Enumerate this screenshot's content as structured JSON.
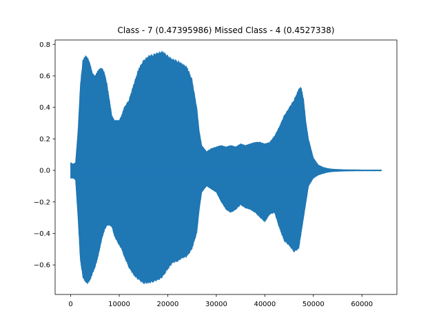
{
  "chart_data": {
    "type": "line",
    "title": "Class - 7 (0.47395986) Missed Class - 4 (0.4527338)",
    "xlabel": "",
    "ylabel": "",
    "xlim": [
      -3200,
      67200
    ],
    "ylim": [
      -0.7875,
      0.8275
    ],
    "xticks": [
      0,
      10000,
      20000,
      30000,
      40000,
      50000,
      60000
    ],
    "xtick_labels": [
      "0",
      "10000",
      "20000",
      "30000",
      "40000",
      "50000",
      "60000"
    ],
    "yticks": [
      -0.6,
      -0.4,
      -0.2,
      0.0,
      0.2,
      0.4,
      0.6,
      0.8
    ],
    "ytick_labels": [
      "−0.6",
      "−0.4",
      "−0.2",
      "0.0",
      "0.2",
      "0.4",
      "0.6",
      "0.8"
    ],
    "grid": false,
    "series_color": "#1f77b4",
    "series": [
      {
        "description": "waveform amplitude envelope (max / min) over sample index 0–64000",
        "x": [
          0,
          500,
          1000,
          1500,
          2000,
          2500,
          3000,
          3500,
          4000,
          4500,
          5000,
          5500,
          6000,
          6500,
          7000,
          7500,
          8000,
          8500,
          9000,
          10000,
          10500,
          11000,
          12000,
          13000,
          14000,
          15000,
          16000,
          17000,
          18000,
          19000,
          20000,
          21000,
          22000,
          23000,
          24000,
          25000,
          26000,
          26500,
          27000,
          28000,
          29000,
          30000,
          31000,
          32000,
          33000,
          34000,
          35000,
          36000,
          37000,
          38000,
          39000,
          40000,
          41000,
          42000,
          43000,
          44000,
          45000,
          46000,
          47000,
          47500,
          48000,
          48500,
          49000,
          50000,
          51000,
          52000,
          53000,
          54000,
          56000,
          58000,
          60000,
          62000,
          64000
        ],
        "upper": [
          0.05,
          0.04,
          0.05,
          0.25,
          0.55,
          0.7,
          0.73,
          0.72,
          0.68,
          0.62,
          0.6,
          0.63,
          0.65,
          0.65,
          0.62,
          0.55,
          0.45,
          0.35,
          0.32,
          0.32,
          0.35,
          0.4,
          0.45,
          0.55,
          0.65,
          0.7,
          0.73,
          0.74,
          0.75,
          0.76,
          0.73,
          0.71,
          0.7,
          0.68,
          0.66,
          0.58,
          0.4,
          0.25,
          0.16,
          0.12,
          0.14,
          0.15,
          0.16,
          0.15,
          0.16,
          0.15,
          0.17,
          0.16,
          0.17,
          0.18,
          0.18,
          0.17,
          0.18,
          0.22,
          0.28,
          0.35,
          0.4,
          0.45,
          0.52,
          0.53,
          0.45,
          0.3,
          0.2,
          0.08,
          0.035,
          0.02,
          0.012,
          0.008,
          0.005,
          0.004,
          0.003,
          0.003,
          0.003
        ],
        "lower": [
          -0.05,
          -0.05,
          -0.06,
          -0.3,
          -0.58,
          -0.68,
          -0.71,
          -0.72,
          -0.7,
          -0.66,
          -0.62,
          -0.57,
          -0.5,
          -0.43,
          -0.38,
          -0.35,
          -0.35,
          -0.36,
          -0.42,
          -0.48,
          -0.5,
          -0.55,
          -0.62,
          -0.67,
          -0.7,
          -0.72,
          -0.72,
          -0.71,
          -0.7,
          -0.68,
          -0.63,
          -0.59,
          -0.58,
          -0.56,
          -0.55,
          -0.5,
          -0.4,
          -0.25,
          -0.14,
          -0.1,
          -0.12,
          -0.14,
          -0.2,
          -0.25,
          -0.27,
          -0.25,
          -0.22,
          -0.24,
          -0.25,
          -0.27,
          -0.3,
          -0.33,
          -0.28,
          -0.27,
          -0.37,
          -0.45,
          -0.48,
          -0.52,
          -0.5,
          -0.4,
          -0.3,
          -0.2,
          -0.1,
          -0.05,
          -0.03,
          -0.02,
          -0.012,
          -0.008,
          -0.005,
          -0.004,
          -0.003,
          -0.003,
          -0.003
        ]
      }
    ]
  }
}
